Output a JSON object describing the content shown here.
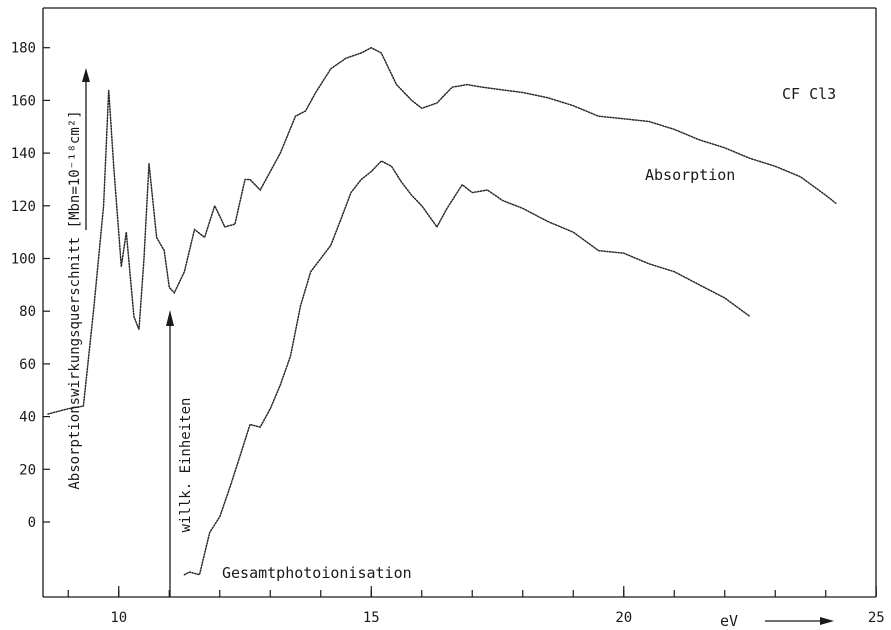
{
  "chart_data": {
    "type": "line",
    "title": "CF Cl3",
    "ylabel": "Absorptionswirkungsquerschnitt [Mbn=10⁻¹⁸cm²]",
    "xlabel": "eV",
    "y2label": "willk. Einheiten",
    "xlim": [
      8.5,
      25
    ],
    "ylim": [
      -20,
      186
    ],
    "x_ticks": [
      10,
      15,
      20,
      25
    ],
    "y_ticks": [
      0,
      20,
      40,
      60,
      80,
      100,
      120,
      140,
      160,
      180
    ],
    "grid": false,
    "annotations": [
      "Absorption",
      "Gesamtphotoionisation"
    ],
    "series": [
      {
        "name": "Absorption",
        "x": [
          8.6,
          9.0,
          9.3,
          9.5,
          9.7,
          9.8,
          9.9,
          10.05,
          10.15,
          10.3,
          10.4,
          10.5,
          10.6,
          10.75,
          10.9,
          11.0,
          11.1,
          11.3,
          11.5,
          11.7,
          11.9,
          12.0,
          12.1,
          12.3,
          12.5,
          12.6,
          12.8,
          13.0,
          13.2,
          13.5,
          13.7,
          13.9,
          14.2,
          14.5,
          14.8,
          15.0,
          15.2,
          15.5,
          15.8,
          16.0,
          16.3,
          16.6,
          16.9,
          17.2,
          17.6,
          18.0,
          18.5,
          19.0,
          19.5,
          20.0,
          20.5,
          21.0,
          21.5,
          22.0,
          22.5,
          23.0,
          23.5,
          24.0,
          24.2
        ],
        "y": [
          41,
          43,
          44,
          80,
          120,
          164,
          135,
          97,
          110,
          78,
          73,
          100,
          136,
          108,
          103,
          89,
          87,
          95,
          111,
          108,
          120,
          116,
          112,
          113,
          130,
          130,
          126,
          133,
          140,
          154,
          156,
          163,
          172,
          176,
          178,
          180,
          178,
          166,
          160,
          157,
          159,
          165,
          166,
          165,
          164,
          163,
          161,
          158,
          154,
          153,
          152,
          149,
          145,
          142,
          138,
          135,
          131,
          124,
          121
        ]
      },
      {
        "name": "Gesamtphotoionisation",
        "x": [
          11.3,
          11.4,
          11.6,
          11.8,
          12.0,
          12.2,
          12.4,
          12.6,
          12.8,
          13.0,
          13.2,
          13.4,
          13.6,
          13.8,
          14.0,
          14.2,
          14.4,
          14.6,
          14.8,
          15.0,
          15.2,
          15.4,
          15.6,
          15.8,
          16.0,
          16.3,
          16.5,
          16.8,
          17.0,
          17.3,
          17.6,
          18.0,
          18.5,
          19.0,
          19.5,
          20.0,
          20.5,
          21.0,
          21.5,
          22.0,
          22.5
        ],
        "y": [
          -20,
          -19,
          -20,
          -4,
          2,
          13,
          25,
          37,
          36,
          43,
          52,
          63,
          82,
          95,
          100,
          105,
          115,
          125,
          130,
          133,
          137,
          135,
          129,
          124,
          120,
          112,
          119,
          128,
          125,
          126,
          122,
          119,
          114,
          110,
          103,
          102,
          98,
          95,
          90,
          85,
          78
        ]
      }
    ]
  }
}
